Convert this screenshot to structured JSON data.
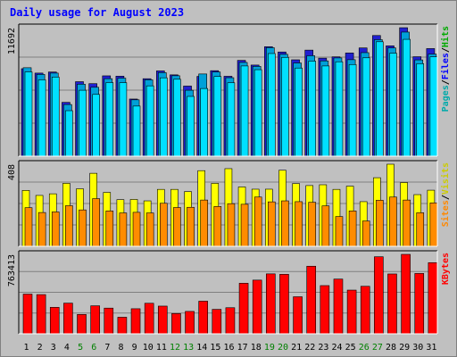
{
  "chart_data": {
    "type": "bar",
    "title": "Daily usage for August 2023",
    "categories": [
      "1",
      "2",
      "3",
      "4",
      "5",
      "6",
      "7",
      "8",
      "9",
      "10",
      "11",
      "12",
      "13",
      "14",
      "15",
      "16",
      "17",
      "18",
      "19",
      "20",
      "21",
      "22",
      "23",
      "24",
      "25",
      "26",
      "27",
      "28",
      "29",
      "30",
      "31"
    ],
    "weekend_days": [
      "5",
      "6",
      "12",
      "13",
      "19",
      "20",
      "26",
      "27"
    ],
    "panels": [
      {
        "name": "hits",
        "max_label": "11692",
        "ymax": 11692,
        "series": [
          {
            "name": "Hits",
            "color": "#00cccc",
            "values": [
              8050,
              7440,
              7560,
              4700,
              6550,
              6270,
              7050,
              7100,
              5130,
              6950,
              7600,
              7320,
              6000,
              7480,
              7660,
              7140,
              8530,
              8170,
              9870,
              9270,
              8480,
              9140,
              8670,
              8940,
              8780,
              9420,
              10600,
              9850,
              11290,
              8760,
              9290
            ]
          },
          {
            "name": "Files",
            "color": "#00aaff",
            "values": [
              7670,
              6950,
              7200,
              4140,
              6000,
              5620,
              6700,
              6690,
              4560,
              6400,
              7130,
              7000,
              5440,
              6160,
              7250,
              6680,
              8210,
              7870,
              9340,
              8990,
              8020,
              8650,
              8210,
              8590,
              8340,
              8950,
              10410,
              9370,
              10630,
              8420,
              9040
            ]
          },
          {
            "name": "Pages",
            "color": "#3333ff",
            "values": [
              7960,
              7560,
              7660,
              4900,
              6780,
              6600,
              7310,
              7280,
              5200,
              7050,
              7760,
              7400,
              6380,
              7260,
              7780,
              7270,
              8720,
              8290,
              9960,
              9480,
              8770,
              9650,
              8920,
              9040,
              9390,
              9850,
              10980,
              10040,
              11690,
              9050,
              9790
            ]
          }
        ]
      },
      {
        "name": "visits",
        "max_label": "408",
        "ymax": 408,
        "series": [
          {
            "name": "Visits",
            "color": "#ffff00",
            "values": [
              278,
              253,
              261,
              313,
              286,
              363,
              268,
              232,
              233,
              226,
              283,
              283,
              272,
              376,
              313,
              386,
              295,
              284,
              284,
              378,
              312,
              302,
              306,
              283,
              299,
              222,
              341,
              408,
              317,
              257,
              279
            ]
          },
          {
            "name": "Sites",
            "color": "#ff9900",
            "values": [
              192,
              168,
              171,
              202,
              181,
              237,
              176,
              166,
              169,
              166,
              214,
              193,
              194,
              230,
              198,
              212,
              209,
              245,
              221,
              226,
              222,
              219,
              201,
              148,
              176,
              126,
              229,
              245,
              230,
              167,
              216
            ]
          }
        ]
      },
      {
        "name": "kbytes",
        "max_label": "763413",
        "ymax": 763413,
        "series": [
          {
            "name": "KBytes",
            "color": "#ff0000",
            "values": [
              381500,
              376800,
              254500,
              294700,
              185900,
              269200,
              247000,
              159300,
              240900,
              293500,
              266200,
              194500,
              215200,
              313500,
              235000,
              250800,
              485900,
              516000,
              576000,
              571700,
              356000,
              649600,
              463300,
              525800,
              420000,
              456600,
              740400,
              575000,
              763400,
              580100,
              683700
            ]
          }
        ]
      }
    ],
    "legend": {
      "hits_axis": [
        {
          "text": "Pages",
          "color": "#00aaaa"
        },
        {
          "text": "/",
          "color": "#000000"
        },
        {
          "text": "Files",
          "color": "#0000ff"
        },
        {
          "text": "/",
          "color": "#000000"
        },
        {
          "text": "Hits",
          "color": "#00aa00"
        }
      ],
      "visits_axis": [
        {
          "text": "Sites",
          "color": "#ff8800"
        },
        {
          "text": "/",
          "color": "#000000"
        },
        {
          "text": "Visits",
          "color": "#cccc00"
        }
      ],
      "kbytes_axis": [
        {
          "text": "KBytes",
          "color": "#ff0000"
        }
      ]
    }
  }
}
